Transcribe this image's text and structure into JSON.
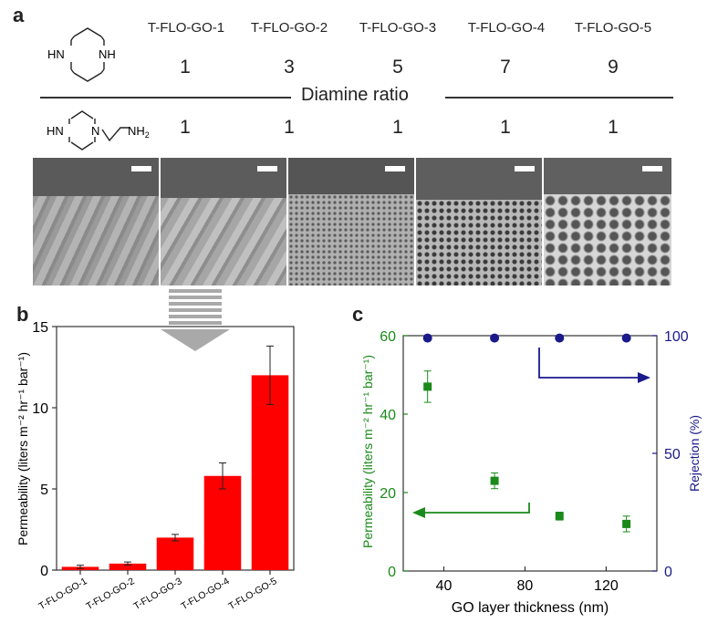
{
  "panel_labels": {
    "a": "a",
    "b": "b",
    "c": "c"
  },
  "panel_a": {
    "samples": [
      "T-FLO-GO-1",
      "T-FLO-GO-2",
      "T-FLO-GO-3",
      "T-FLO-GO-4",
      "T-FLO-GO-5"
    ],
    "piperazine_ratio": [
      "1",
      "3",
      "5",
      "7",
      "9"
    ],
    "aep_ratio": [
      "1",
      "1",
      "1",
      "1",
      "1"
    ],
    "divider_label": "Diamine ratio",
    "piperazine_atoms": {
      "n1": "HN",
      "n2": "NH"
    },
    "aep_atoms": {
      "n1": "HN",
      "n2": "N",
      "nh2": "NH",
      "sub2": "2"
    }
  },
  "chart_data": [
    {
      "type": "bar",
      "panel": "b",
      "categories": [
        "T-FLO-GO-1",
        "T-FLO-GO-2",
        "T-FLO-GO-3",
        "T-FLO-GO-4",
        "T-FLO-GO-5"
      ],
      "values": [
        0.2,
        0.4,
        2.0,
        5.8,
        12.0
      ],
      "errors": [
        0.1,
        0.1,
        0.2,
        0.8,
        1.8
      ],
      "ylabel": "Permeability (liters m⁻² hr⁻¹ bar⁻¹)",
      "ylim": [
        0,
        15
      ],
      "yticks": [
        "0",
        "5",
        "10",
        "15"
      ],
      "color": "#ff0000"
    },
    {
      "type": "scatter",
      "panel": "c",
      "xlabel": "GO layer thickness (nm)",
      "xlim": [
        20,
        145
      ],
      "xticks": [
        "40",
        "80",
        "120"
      ],
      "series": [
        {
          "axis": "left",
          "x": [
            32,
            65,
            97,
            130
          ],
          "y": [
            47,
            23,
            14,
            12
          ],
          "errors": [
            4,
            2,
            1,
            2
          ],
          "color": "#1a8a1a",
          "marker": "square"
        },
        {
          "axis": "right",
          "x": [
            32,
            65,
            97,
            130
          ],
          "y": [
            99,
            99,
            99,
            99
          ],
          "color": "#1a1a8a",
          "marker": "circle"
        }
      ],
      "ylabel_left": "Permeability (liters m⁻² hr⁻¹ bar⁻¹)",
      "ylim_left": [
        0,
        60
      ],
      "yticks_left": [
        "0",
        "20",
        "40",
        "60"
      ],
      "ylabel_right": "Rejection (%)",
      "ylim_right": [
        0,
        100
      ],
      "yticks_right": [
        "0",
        "50",
        "100"
      ]
    }
  ]
}
